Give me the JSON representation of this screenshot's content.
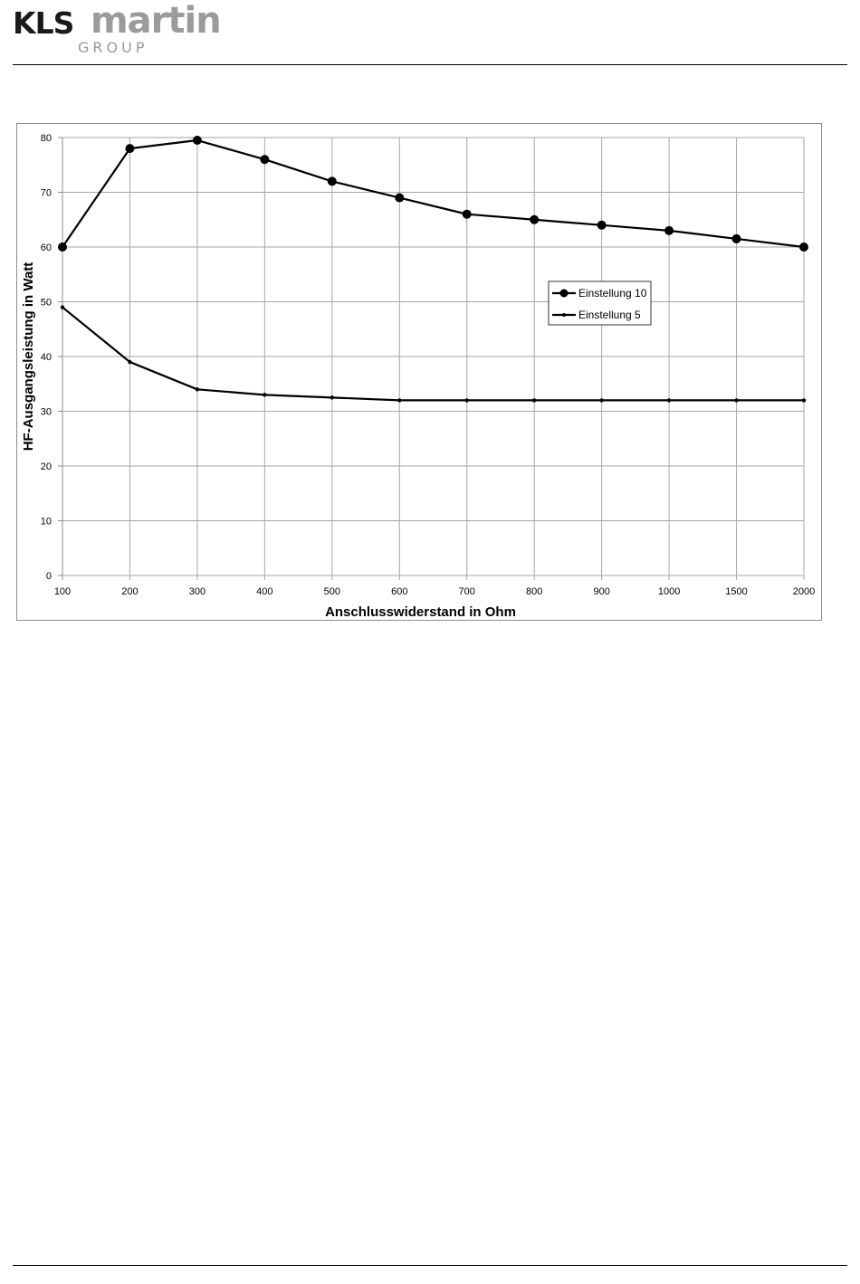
{
  "header": {
    "logo_kls": "KLS",
    "logo_martin": "martin",
    "logo_group": "GROUP",
    "brand_color_dark": "#1a1a1a",
    "brand_color_grey": "#9b9b9b"
  },
  "chart_data": {
    "type": "line",
    "categories": [
      "100",
      "200",
      "300",
      "400",
      "500",
      "600",
      "700",
      "800",
      "900",
      "1000",
      "1500",
      "2000"
    ],
    "series": [
      {
        "name": "Einstellung 10",
        "values": [
          60,
          78,
          79.5,
          76,
          72,
          69,
          66,
          65,
          64,
          63,
          61.5,
          60
        ],
        "marker": "large-circle",
        "color": "#000000"
      },
      {
        "name": "Einstellung 5",
        "values": [
          49,
          39,
          34,
          33,
          32.5,
          32,
          32,
          32,
          32,
          32,
          32,
          32
        ],
        "marker": "small-circle",
        "color": "#000000"
      }
    ],
    "xlabel": "Anschlusswiderstand in Ohm",
    "ylabel": "HF-Ausgangsleistung in Watt",
    "ylim": [
      0,
      80
    ],
    "yticks": [
      "0",
      "10",
      "20",
      "30",
      "40",
      "50",
      "60",
      "70",
      "80"
    ],
    "grid": true,
    "legend_position": "right-middle"
  }
}
